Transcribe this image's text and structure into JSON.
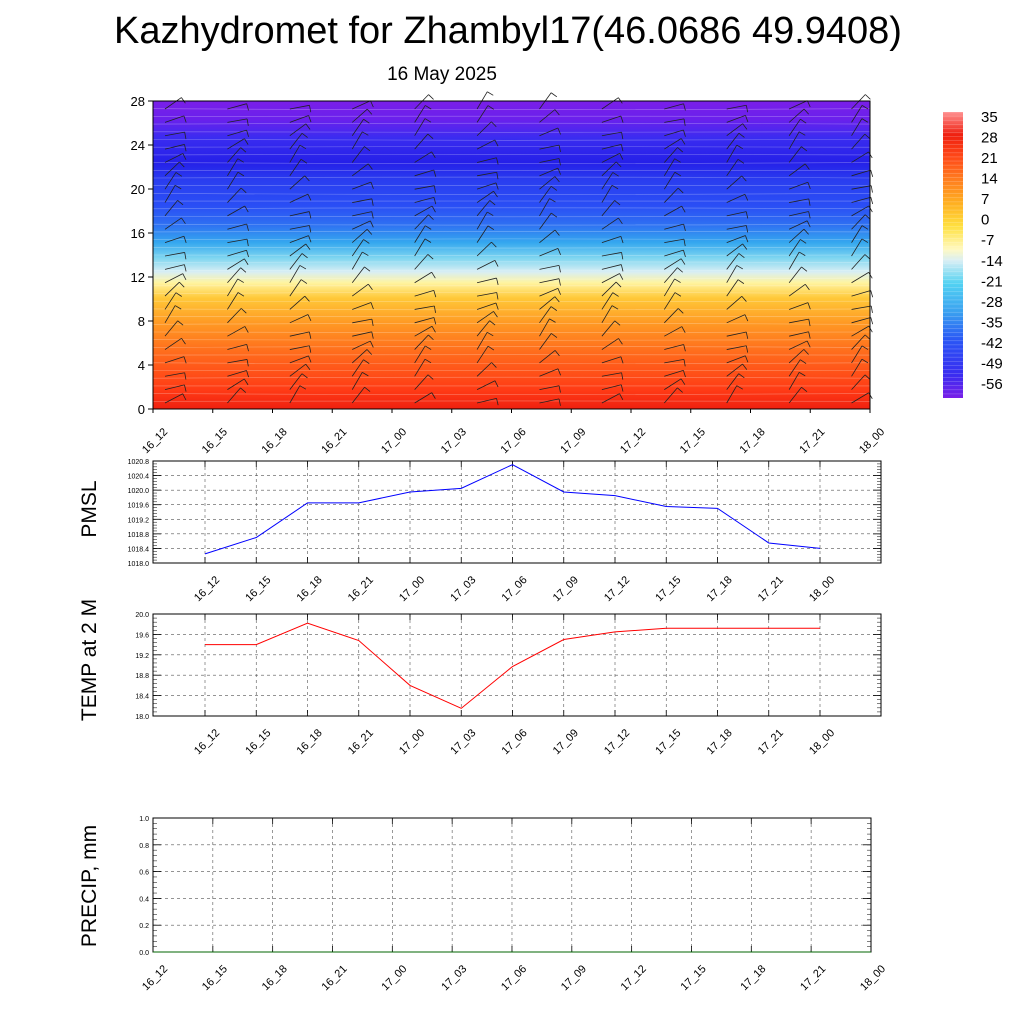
{
  "title": "Kazhydromet for Zhambyl17(46.0686 49.9408)",
  "subtitle": "16 May 2025",
  "chart_data": [
    {
      "type": "heatmap",
      "name": "upper-air-cross-section",
      "x_ticks": [
        "16_12",
        "16_15",
        "16_18",
        "16_21",
        "17_00",
        "17_03",
        "17_06",
        "17_09",
        "17_12",
        "17_15",
        "17_18",
        "17_21",
        "18_00"
      ],
      "y_ticks": [
        "0",
        "4",
        "8",
        "12",
        "16",
        "20",
        "24",
        "28"
      ],
      "ylim": [
        0,
        28
      ],
      "colorbar_labels": [
        "35",
        "28",
        "21",
        "14",
        "7",
        "0",
        "-7",
        "-14",
        "-21",
        "-28",
        "-35",
        "-42",
        "-49",
        "-56"
      ],
      "colorbar_range": [
        -60,
        38
      ],
      "colors": [
        "#6a1fe8",
        "#3a2cf0",
        "#2a55f5",
        "#3aa0f0",
        "#52d2f2",
        "#bde9f4",
        "#fff9c0",
        "#ffe040",
        "#ffb020",
        "#ff8020",
        "#ff4a18",
        "#ef2010",
        "#ff9090"
      ],
      "wind_barbs": true
    },
    {
      "type": "line",
      "name": "pmsl",
      "ylabel": "PMSL",
      "categories": [
        "16_12",
        "16_15",
        "16_18",
        "16_21",
        "17_00",
        "17_03",
        "17_06",
        "17_09",
        "17_12",
        "17_15",
        "17_18",
        "17_21",
        "18_00"
      ],
      "values": [
        1018.25,
        1018.7,
        1019.65,
        1019.65,
        1019.95,
        1020.05,
        1020.7,
        1019.95,
        1019.85,
        1019.55,
        1019.5,
        1018.55,
        1018.4
      ],
      "ylim": [
        1018.0,
        1020.8
      ],
      "y_ticks": [
        "1018.0",
        "1018.4",
        "1018.8",
        "1019.2",
        "1019.6",
        "1020.0",
        "1020.4",
        "1020.8"
      ],
      "color": "#0000ff"
    },
    {
      "type": "line",
      "name": "temp2m",
      "ylabel": "TEMP at 2 M",
      "categories": [
        "16_12",
        "16_15",
        "16_18",
        "16_21",
        "17_00",
        "17_03",
        "17_06",
        "17_09",
        "17_12",
        "17_15",
        "17_18",
        "17_21",
        "18_00"
      ],
      "values": [
        19.4,
        19.4,
        19.82,
        19.48,
        18.6,
        18.15,
        18.97,
        19.5,
        19.65,
        19.72,
        19.72,
        19.72,
        19.72
      ],
      "ylim": [
        18.0,
        20.0
      ],
      "y_ticks": [
        "18.0",
        "18.4",
        "18.8",
        "19.2",
        "19.6",
        "20.0"
      ],
      "color": "#ff0000"
    },
    {
      "type": "line",
      "name": "precip",
      "ylabel": "PRECIP, mm",
      "categories": [
        "16_12",
        "16_15",
        "16_18",
        "16_21",
        "17_00",
        "17_03",
        "17_06",
        "17_09",
        "17_12",
        "17_15",
        "17_18",
        "17_21",
        "18_00"
      ],
      "values": [
        0,
        0,
        0,
        0,
        0,
        0,
        0,
        0,
        0,
        0,
        0,
        0,
        0
      ],
      "ylim": [
        0,
        1.0
      ],
      "y_ticks": [
        "0.0",
        "0.2",
        "0.4",
        "0.6",
        "0.8",
        "1.0"
      ],
      "color": "#006400"
    }
  ]
}
